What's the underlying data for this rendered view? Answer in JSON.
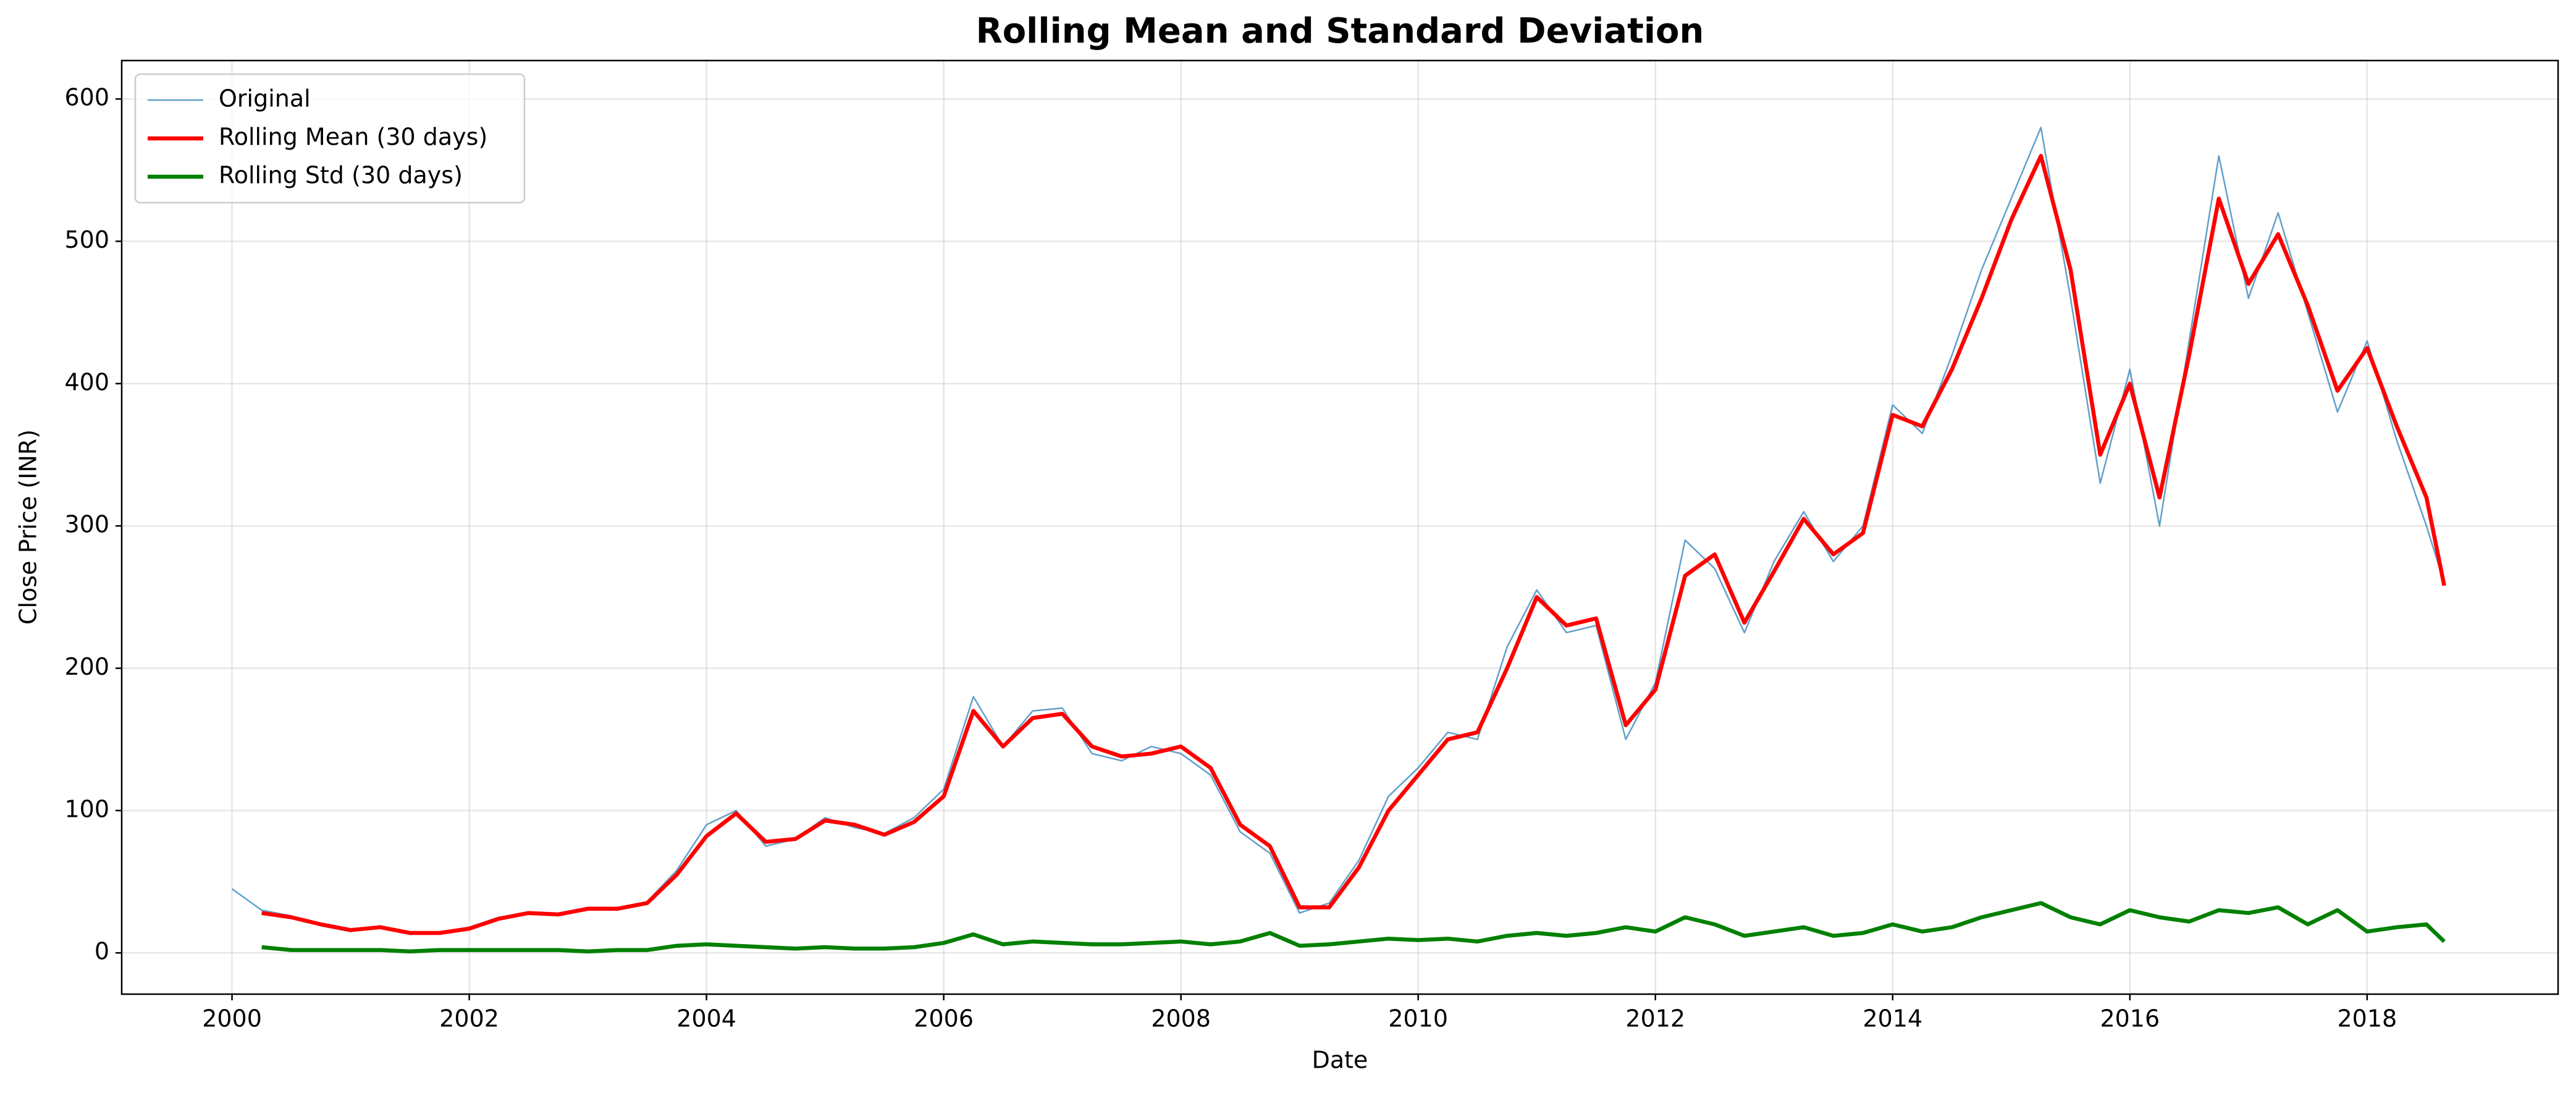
{
  "chart_data": {
    "type": "line",
    "title": "Rolling Mean and Standard Deviation",
    "x_label": "Date",
    "y_label": "Close Price (INR)",
    "x": [
      2000,
      2000.25,
      2000.5,
      2000.75,
      2001,
      2001.25,
      2001.5,
      2001.75,
      2002,
      2002.25,
      2002.5,
      2002.75,
      2003,
      2003.25,
      2003.5,
      2003.75,
      2004,
      2004.25,
      2004.5,
      2004.75,
      2005,
      2005.25,
      2005.5,
      2005.75,
      2006,
      2006.25,
      2006.5,
      2006.75,
      2007,
      2007.25,
      2007.5,
      2007.75,
      2008,
      2008.25,
      2008.5,
      2008.75,
      2009,
      2009.25,
      2009.5,
      2009.75,
      2010,
      2010.25,
      2010.5,
      2010.75,
      2011,
      2011.25,
      2011.5,
      2011.75,
      2012,
      2012.25,
      2012.5,
      2012.75,
      2013,
      2013.25,
      2013.5,
      2013.75,
      2014,
      2014.25,
      2014.5,
      2014.75,
      2015,
      2015.25,
      2015.5,
      2015.75,
      2016,
      2016.25,
      2016.5,
      2016.75,
      2017,
      2017.25,
      2017.5,
      2017.75,
      2018,
      2018.25,
      2018.5,
      2018.65
    ],
    "series": [
      {
        "name": "Original",
        "color": "#1f77b4",
        "values": [
          45,
          30,
          26,
          19,
          15,
          19,
          13,
          14,
          18,
          25,
          28,
          27,
          31,
          30,
          36,
          58,
          90,
          100,
          75,
          80,
          95,
          88,
          84,
          95,
          115,
          180,
          145,
          170,
          172,
          140,
          135,
          145,
          140,
          125,
          85,
          70,
          28,
          35,
          65,
          110,
          130,
          155,
          150,
          215,
          255,
          225,
          230,
          150,
          190,
          290,
          270,
          225,
          275,
          310,
          275,
          300,
          385,
          365,
          420,
          480,
          530,
          580,
          460,
          330,
          410,
          300,
          430,
          560,
          460,
          520,
          450,
          380,
          430,
          360,
          300,
          260
        ]
      },
      {
        "name": "Rolling Mean (30 days)",
        "color": "#ff0000",
        "values": [
          null,
          28,
          25,
          20,
          16,
          18,
          14,
          14,
          17,
          24,
          28,
          27,
          31,
          31,
          35,
          55,
          82,
          98,
          78,
          80,
          93,
          90,
          83,
          92,
          110,
          170,
          145,
          165,
          168,
          145,
          138,
          140,
          145,
          130,
          90,
          75,
          32,
          32,
          60,
          100,
          125,
          150,
          155,
          200,
          250,
          230,
          235,
          160,
          185,
          265,
          280,
          232,
          268,
          305,
          280,
          295,
          378,
          370,
          410,
          460,
          515,
          560,
          480,
          350,
          400,
          320,
          420,
          530,
          470,
          505,
          455,
          395,
          425,
          370,
          320,
          258
        ]
      },
      {
        "name": "Rolling Std (30 days)",
        "color": "#008000",
        "values": [
          null,
          4,
          2,
          2,
          2,
          2,
          1,
          2,
          2,
          2,
          2,
          2,
          1,
          2,
          2,
          5,
          6,
          5,
          4,
          3,
          4,
          3,
          3,
          4,
          7,
          13,
          6,
          8,
          7,
          6,
          6,
          7,
          8,
          6,
          8,
          14,
          5,
          6,
          8,
          10,
          9,
          10,
          8,
          12,
          14,
          12,
          14,
          18,
          15,
          25,
          20,
          12,
          15,
          18,
          12,
          14,
          20,
          15,
          18,
          25,
          30,
          35,
          25,
          20,
          30,
          25,
          22,
          30,
          28,
          32,
          20,
          30,
          15,
          18,
          20,
          8
        ]
      }
    ],
    "xlim": [
      1999.07,
      2019.61
    ],
    "xticks": [
      2000,
      2002,
      2004,
      2006,
      2008,
      2010,
      2012,
      2014,
      2016,
      2018
    ],
    "ylim": [
      -29,
      627
    ],
    "yticks": [
      0,
      100,
      200,
      300,
      400,
      500,
      600
    ],
    "grid": true,
    "legend": "upper left"
  }
}
